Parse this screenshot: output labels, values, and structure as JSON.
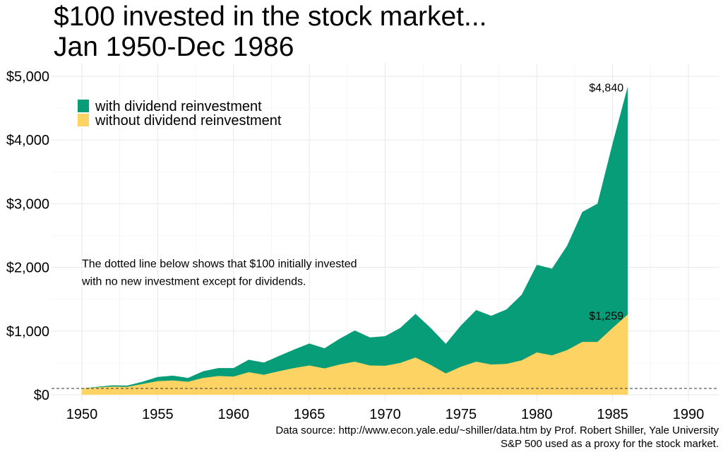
{
  "chart_data": {
    "type": "area",
    "title": [
      "$100 invested in the stock market...",
      "Jan 1950-Dec 1986"
    ],
    "xlabel": "",
    "ylabel": "",
    "xlim": [
      1948,
      1992
    ],
    "ylim": [
      -100,
      5200
    ],
    "x_ticks": [
      {
        "value": 1950,
        "label": "1950"
      },
      {
        "value": 1955,
        "label": "1955"
      },
      {
        "value": 1960,
        "label": "1960"
      },
      {
        "value": 1965,
        "label": "1965"
      },
      {
        "value": 1970,
        "label": "1970"
      },
      {
        "value": 1975,
        "label": "1975"
      },
      {
        "value": 1980,
        "label": "1980"
      },
      {
        "value": 1985,
        "label": "1985"
      },
      {
        "value": 1990,
        "label": "1990"
      }
    ],
    "y_ticks": [
      {
        "value": 0,
        "label": "$0"
      },
      {
        "value": 1000,
        "label": "$1,000"
      },
      {
        "value": 2000,
        "label": "$2,000"
      },
      {
        "value": 3000,
        "label": "$3,000"
      },
      {
        "value": 4000,
        "label": "$4,000"
      },
      {
        "value": 5000,
        "label": "$5,000"
      }
    ],
    "grid": true,
    "legend_position": "top-left",
    "x": [
      1950,
      1951,
      1952,
      1953,
      1954,
      1955,
      1956,
      1957,
      1958,
      1959,
      1960,
      1961,
      1962,
      1963,
      1964,
      1965,
      1966,
      1967,
      1968,
      1969,
      1970,
      1971,
      1972,
      1973,
      1974,
      1975,
      1976,
      1977,
      1978,
      1979,
      1980,
      1981,
      1982,
      1983,
      1984,
      1985,
      1986
    ],
    "series": [
      {
        "name": "with dividend reinvestment",
        "color": "#079d78",
        "values": [
          100,
          125,
          148,
          145,
          205,
          280,
          300,
          265,
          370,
          420,
          420,
          550,
          505,
          610,
          710,
          805,
          730,
          880,
          1010,
          900,
          920,
          1050,
          1270,
          1050,
          800,
          1090,
          1330,
          1240,
          1340,
          1570,
          2040,
          1980,
          2340,
          2870,
          3000,
          3950,
          4840
        ]
      },
      {
        "name": "without dividend reinvestment",
        "color": "#fdd464",
        "values": [
          100,
          115,
          128,
          125,
          170,
          215,
          225,
          205,
          265,
          295,
          285,
          355,
          315,
          370,
          420,
          460,
          415,
          475,
          520,
          460,
          455,
          500,
          585,
          470,
          335,
          440,
          520,
          475,
          485,
          540,
          665,
          620,
          700,
          830,
          830,
          1050,
          1259
        ]
      }
    ],
    "baseline": {
      "value": 100,
      "style": "dotted"
    },
    "end_labels": [
      {
        "x": 1986,
        "y": 4840,
        "text": "$4,840"
      },
      {
        "x": 1986,
        "y": 1259,
        "text": "$1,259"
      }
    ],
    "annotation": {
      "lines": [
        "The dotted line below shows that $100 initially invested",
        "with no new investment except for dividends."
      ],
      "x": 1950,
      "y": 2000
    },
    "caption": [
      "Data source: http://www.econ.yale.edu/~shiller/data.htm by Prof. Robert Shiller, Yale University",
      "S&P 500 used as a proxy for the stock market."
    ]
  }
}
